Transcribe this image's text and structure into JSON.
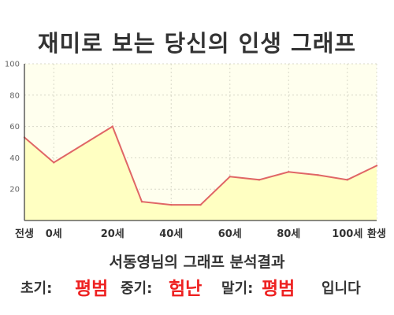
{
  "chart_data": {
    "type": "area",
    "title": "재미로 보는 당신의 인생 그래프",
    "x": [
      -10,
      0,
      20,
      30,
      40,
      50,
      60,
      70,
      80,
      90,
      100,
      110
    ],
    "values": [
      53,
      37,
      60,
      12,
      10,
      10,
      28,
      26,
      31,
      29,
      26,
      35
    ],
    "xlim": [
      -10,
      110
    ],
    "ylim": [
      0,
      100
    ],
    "y_ticks": [
      20,
      40,
      60,
      80,
      100
    ],
    "x_ticks": [
      {
        "x": -10,
        "label": "전생"
      },
      {
        "x": 0,
        "label": "0세"
      },
      {
        "x": 20,
        "label": "20세"
      },
      {
        "x": 40,
        "label": "40세"
      },
      {
        "x": 60,
        "label": "60세"
      },
      {
        "x": 80,
        "label": "80세"
      },
      {
        "x": 100,
        "label": "100세"
      },
      {
        "x": 110,
        "label": "환생"
      }
    ],
    "grid": true,
    "line_color": "#e06666",
    "fill_color": "#ffffc2",
    "plot_bg": "#ffffee"
  },
  "summary": {
    "subtitle": "서동영님의 그래프 분석결과",
    "early_label": "초기:",
    "early_value": "평범",
    "mid_label": "중기:",
    "mid_value": "험난",
    "late_label": "말기:",
    "late_value": "평범",
    "ending": "입니다",
    "value_color": "#ee2222"
  }
}
